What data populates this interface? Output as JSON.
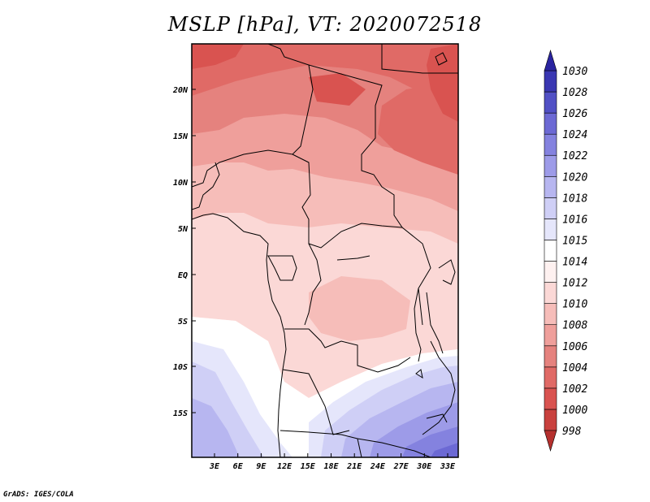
{
  "title": "MSLP [hPa], VT: 2020072518",
  "credit": "GrADS: IGES/COLA",
  "lat_labels": [
    "20N",
    "15N",
    "10N",
    "5N",
    "EQ",
    "5S",
    "10S",
    "15S"
  ],
  "lon_labels": [
    "3E",
    "6E",
    "9E",
    "12E",
    "15E",
    "18E",
    "21E",
    "24E",
    "27E",
    "30E",
    "33E"
  ],
  "colorbar": {
    "levels": [
      "998",
      "1000",
      "1002",
      "1004",
      "1006",
      "1008",
      "1010",
      "1012",
      "1014",
      "1015",
      "1016",
      "1018",
      "1020",
      "1022",
      "1024",
      "1026",
      "1028",
      "1030"
    ],
    "colors": [
      "#b5302e",
      "#c9413e",
      "#d95350",
      "#e06a66",
      "#e5827e",
      "#ef9f9b",
      "#f6bdb9",
      "#fbd8d6",
      "#fef1f0",
      "#ffffff",
      "#e5e6fb",
      "#cfcff6",
      "#b7b6f0",
      "#9d9be8",
      "#8482df",
      "#6c69d4",
      "#5150c5",
      "#3a37b2",
      "#2a24a0"
    ]
  }
}
